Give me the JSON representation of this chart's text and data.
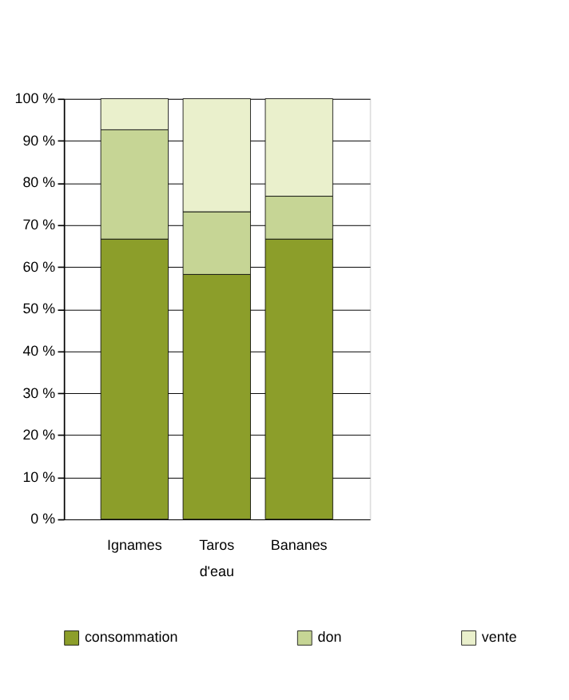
{
  "chart_data": {
    "type": "bar",
    "stacked": true,
    "categories": [
      "Ignames",
      "Taros d'eau",
      "Bananes"
    ],
    "series": [
      {
        "name": "consommation",
        "color": "#8c9e2a",
        "values": [
          66.6,
          58.2,
          66.6
        ]
      },
      {
        "name": "don",
        "color": "#c6d595",
        "values": [
          26,
          14.9,
          10.2
        ]
      },
      {
        "name": "vente",
        "color": "#eaf0cc",
        "values": [
          7.4,
          26.9,
          23.2
        ]
      }
    ],
    "ylim": [
      0,
      100
    ],
    "yticks": [
      {
        "value": 0,
        "label": "0 %"
      },
      {
        "value": 10,
        "label": "10 %"
      },
      {
        "value": 20,
        "label": "20 %"
      },
      {
        "value": 30,
        "label": "30 %"
      },
      {
        "value": 40,
        "label": "40 %"
      },
      {
        "value": 50,
        "label": "50 %"
      },
      {
        "value": 60,
        "label": "60 %"
      },
      {
        "value": 70,
        "label": "70 %"
      },
      {
        "value": 80,
        "label": "80 %"
      },
      {
        "value": 90,
        "label": "90 %"
      },
      {
        "value": 100,
        "label": "100 %"
      }
    ],
    "grid": "y",
    "legend": "bottom"
  }
}
